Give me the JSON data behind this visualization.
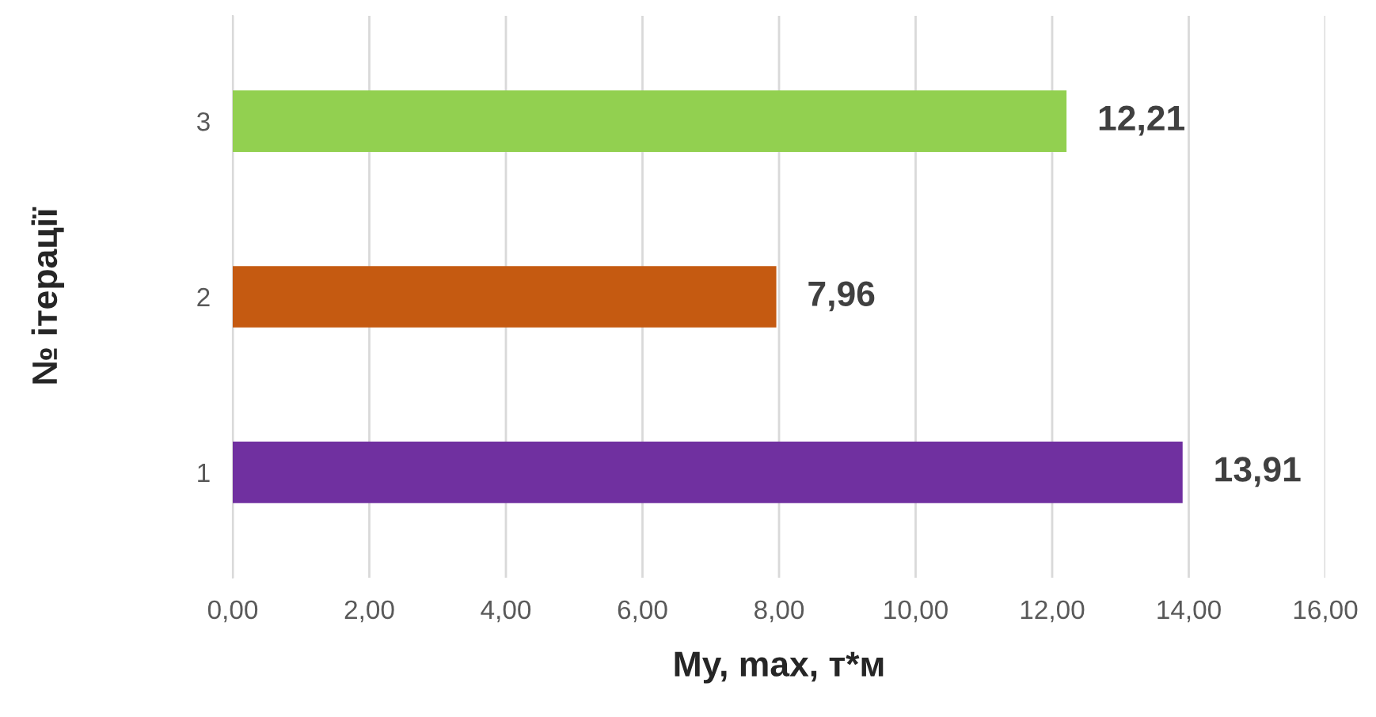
{
  "chart_data": {
    "type": "bar",
    "orientation": "horizontal",
    "xlabel": "My, max, т*м",
    "ylabel": "№ ітерації",
    "categories": [
      "3",
      "2",
      "1"
    ],
    "values": [
      12.21,
      7.96,
      13.91
    ],
    "value_labels": [
      "12,21",
      "7,96",
      "13,91"
    ],
    "colors": [
      "#92d050",
      "#c55a11",
      "#7030a0"
    ],
    "xlim": [
      0,
      16
    ],
    "xticks": [
      {
        "value": 0,
        "label": "0,00"
      },
      {
        "value": 2,
        "label": "2,00"
      },
      {
        "value": 4,
        "label": "4,00"
      },
      {
        "value": 6,
        "label": "6,00"
      },
      {
        "value": 8,
        "label": "8,00"
      },
      {
        "value": 10,
        "label": "10,00"
      },
      {
        "value": 12,
        "label": "12,00"
      },
      {
        "value": 14,
        "label": "14,00"
      },
      {
        "value": 16,
        "label": "16,00"
      }
    ],
    "grid": "x",
    "legend": false
  }
}
